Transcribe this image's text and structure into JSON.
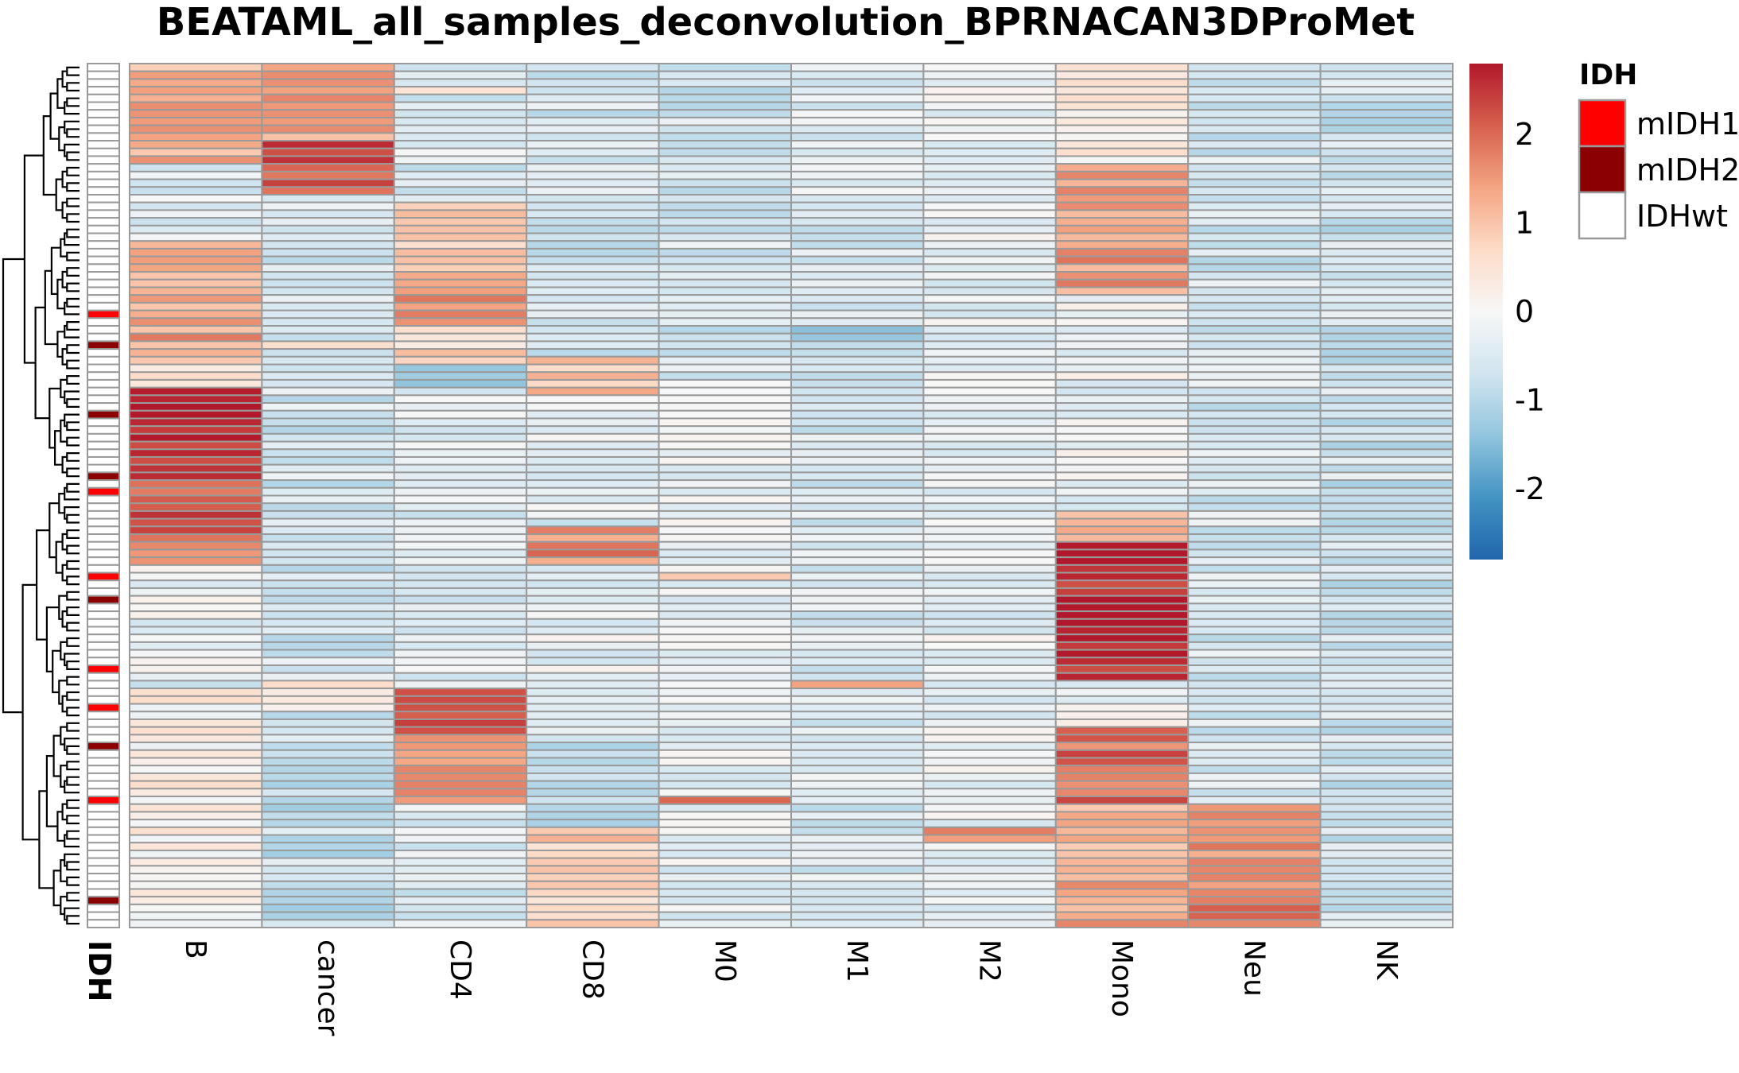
{
  "chart_data": {
    "type": "heatmap",
    "title": "BEATAML_all_samples_deconvolution_BPRNACAN3DProMet",
    "columns": [
      "B",
      "cancer",
      "CD4",
      "CD8",
      "M0",
      "M1",
      "M2",
      "Mono",
      "Neu",
      "NK"
    ],
    "row_count": 112,
    "annotation": {
      "name": "IDH",
      "legend_title": "IDH",
      "levels": [
        {
          "label": "mIDH1",
          "color": "#ff0000"
        },
        {
          "label": "mIDH2",
          "color": "#8b0000"
        },
        {
          "label": "IDHwt",
          "color": "#ffffff"
        }
      ],
      "mIDH1_rows": [
        32,
        55,
        66,
        78,
        83,
        95
      ],
      "mIDH2_rows": [
        36,
        45,
        53,
        69,
        88,
        108
      ]
    },
    "colorscale": {
      "range": [
        -2.8,
        2.8
      ],
      "ticks": [
        {
          "value": 2,
          "label": "2"
        },
        {
          "value": 1,
          "label": "1"
        },
        {
          "value": 0,
          "label": "0"
        },
        {
          "value": -1,
          "label": "-1"
        },
        {
          "value": -2,
          "label": "-2"
        }
      ],
      "colors": [
        "#2166ac",
        "#4393c3",
        "#92c5de",
        "#d1e5f0",
        "#f7f7f7",
        "#fddbc7",
        "#f4a582",
        "#d6604d",
        "#b2182b"
      ]
    },
    "blocks": [
      {
        "col": "B",
        "rows": [
          0,
          12
        ],
        "value": 1.2
      },
      {
        "col": "B",
        "rows": [
          13,
          22
        ],
        "value": -0.4
      },
      {
        "col": "B",
        "rows": [
          23,
          37
        ],
        "value": 1.4
      },
      {
        "col": "B",
        "rows": [
          38,
          41
        ],
        "value": 0.6
      },
      {
        "col": "B",
        "rows": [
          42,
          52
        ],
        "value": 2.7
      },
      {
        "col": "B",
        "rows": [
          53,
          61
        ],
        "value": 2.2
      },
      {
        "col": "B",
        "rows": [
          62,
          64
        ],
        "value": 1.4
      },
      {
        "col": "B",
        "rows": [
          65,
          79
        ],
        "value": -0.2
      },
      {
        "col": "B",
        "rows": [
          80,
          80
        ],
        "value": -1.2
      },
      {
        "col": "B",
        "rows": [
          81,
          111
        ],
        "value": 0.2
      },
      {
        "col": "cancer",
        "rows": [
          0,
          9
        ],
        "value": 1.4
      },
      {
        "col": "cancer",
        "rows": [
          10,
          16
        ],
        "value": 2.3
      },
      {
        "col": "cancer",
        "rows": [
          17,
          35
        ],
        "value": -0.6
      },
      {
        "col": "cancer",
        "rows": [
          36,
          36
        ],
        "value": 1.0
      },
      {
        "col": "cancer",
        "rows": [
          37,
          79
        ],
        "value": -0.6
      },
      {
        "col": "cancer",
        "rows": [
          80,
          83
        ],
        "value": 0.5
      },
      {
        "col": "cancer",
        "rows": [
          84,
          111
        ],
        "value": -0.8
      },
      {
        "col": "CD4",
        "rows": [
          0,
          2
        ],
        "value": -0.6
      },
      {
        "col": "CD4",
        "rows": [
          3,
          3
        ],
        "value": 0.9
      },
      {
        "col": "CD4",
        "rows": [
          4,
          17
        ],
        "value": -0.5
      },
      {
        "col": "CD4",
        "rows": [
          18,
          38
        ],
        "value": 0.7
      },
      {
        "col": "CD4",
        "rows": [
          27,
          33
        ],
        "value": 1.5
      },
      {
        "col": "CD4",
        "rows": [
          39,
          41
        ],
        "value": -1.2
      },
      {
        "col": "CD4",
        "rows": [
          42,
          80
        ],
        "value": -0.4
      },
      {
        "col": "CD4",
        "rows": [
          81,
          86
        ],
        "value": 2.4
      },
      {
        "col": "CD4",
        "rows": [
          87,
          95
        ],
        "value": 1.5
      },
      {
        "col": "CD4",
        "rows": [
          96,
          111
        ],
        "value": -0.5
      },
      {
        "col": "CD8",
        "rows": [
          0,
          37
        ],
        "value": -0.6
      },
      {
        "col": "CD8",
        "rows": [
          38,
          42
        ],
        "value": 1.0
      },
      {
        "col": "CD8",
        "rows": [
          43,
          59
        ],
        "value": -0.4
      },
      {
        "col": "CD8",
        "rows": [
          60,
          64
        ],
        "value": 1.6
      },
      {
        "col": "CD8",
        "rows": [
          65,
          80
        ],
        "value": -0.3
      },
      {
        "col": "CD8",
        "rows": [
          81,
          98
        ],
        "value": -0.7
      },
      {
        "col": "CD8",
        "rows": [
          99,
          111
        ],
        "value": 0.8
      },
      {
        "col": "M0",
        "rows": [
          0,
          40
        ],
        "value": -0.6
      },
      {
        "col": "M0",
        "rows": [
          41,
          111
        ],
        "value": -0.3
      },
      {
        "col": "M0",
        "rows": [
          95,
          95
        ],
        "value": 2.2
      },
      {
        "col": "M0",
        "rows": [
          66,
          66
        ],
        "value": 1.0
      },
      {
        "col": "M1",
        "rows": [
          0,
          111
        ],
        "value": -0.5
      },
      {
        "col": "M1",
        "rows": [
          34,
          35
        ],
        "value": -1.4
      },
      {
        "col": "M1",
        "rows": [
          80,
          80
        ],
        "value": 1.3
      },
      {
        "col": "M2",
        "rows": [
          0,
          111
        ],
        "value": -0.3
      },
      {
        "col": "M2",
        "rows": [
          99,
          100
        ],
        "value": 1.5
      },
      {
        "col": "Mono",
        "rows": [
          0,
          12
        ],
        "value": 0.3
      },
      {
        "col": "Mono",
        "rows": [
          13,
          29
        ],
        "value": 1.5
      },
      {
        "col": "Mono",
        "rows": [
          30,
          57
        ],
        "value": -0.2
      },
      {
        "col": "Mono",
        "rows": [
          58,
          61
        ],
        "value": 1.4
      },
      {
        "col": "Mono",
        "rows": [
          62,
          79
        ],
        "value": 2.7
      },
      {
        "col": "Mono",
        "rows": [
          80,
          85
        ],
        "value": -0.1
      },
      {
        "col": "Mono",
        "rows": [
          86,
          95
        ],
        "value": 2.0
      },
      {
        "col": "Mono",
        "rows": [
          96,
          111
        ],
        "value": 1.3
      },
      {
        "col": "Neu",
        "rows": [
          0,
          95
        ],
        "value": -0.6
      },
      {
        "col": "Neu",
        "rows": [
          96,
          111
        ],
        "value": 1.7
      },
      {
        "col": "NK",
        "rows": [
          0,
          111
        ],
        "value": -0.7
      }
    ],
    "dendrogram": {
      "side": "left"
    }
  }
}
